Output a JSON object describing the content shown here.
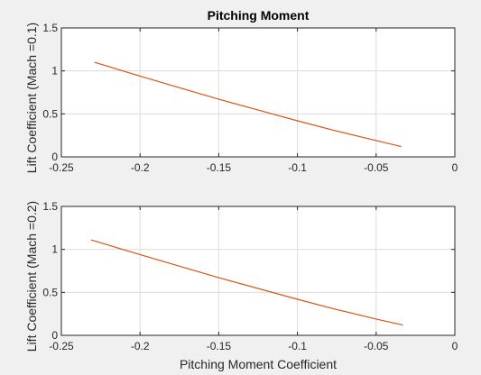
{
  "chart_data": [
    {
      "type": "line",
      "title": "Pitching Moment",
      "xlabel": "",
      "ylabel": "Lift Coefficient (Mach =0.1)",
      "xlim": [
        -0.25,
        0
      ],
      "ylim": [
        0,
        1.5
      ],
      "xticks": [
        -0.25,
        -0.2,
        -0.15,
        -0.1,
        -0.05,
        0
      ],
      "yticks": [
        0,
        0.5,
        1,
        1.5
      ],
      "xtick_labels": [
        "-0.25",
        "-0.2",
        "-0.15",
        "-0.1",
        "-0.05",
        "0"
      ],
      "ytick_labels": [
        "0",
        "0.5",
        "1",
        "1.5"
      ],
      "grid": true,
      "line_color": "#d95319",
      "series": [
        {
          "x": [
            -0.229,
            -0.2,
            -0.15,
            -0.1,
            -0.075,
            -0.05,
            -0.034
          ],
          "y": [
            1.1,
            0.94,
            0.67,
            0.42,
            0.3,
            0.19,
            0.12
          ]
        }
      ]
    },
    {
      "type": "line",
      "title": "",
      "xlabel": "Pitching Moment Coefficient",
      "ylabel": "Lift Coefficient (Mach =0.2)",
      "xlim": [
        -0.25,
        0
      ],
      "ylim": [
        0,
        1.5
      ],
      "xticks": [
        -0.25,
        -0.2,
        -0.15,
        -0.1,
        -0.05,
        0
      ],
      "yticks": [
        0,
        0.5,
        1,
        1.5
      ],
      "xtick_labels": [
        "-0.25",
        "-0.2",
        "-0.15",
        "-0.1",
        "-0.05",
        "0"
      ],
      "ytick_labels": [
        "0",
        "0.5",
        "1",
        "1.5"
      ],
      "grid": true,
      "line_color": "#d95319",
      "series": [
        {
          "x": [
            -0.231,
            -0.2,
            -0.15,
            -0.1,
            -0.075,
            -0.05,
            -0.033
          ],
          "y": [
            1.11,
            0.94,
            0.67,
            0.42,
            0.3,
            0.19,
            0.12
          ]
        }
      ]
    }
  ]
}
